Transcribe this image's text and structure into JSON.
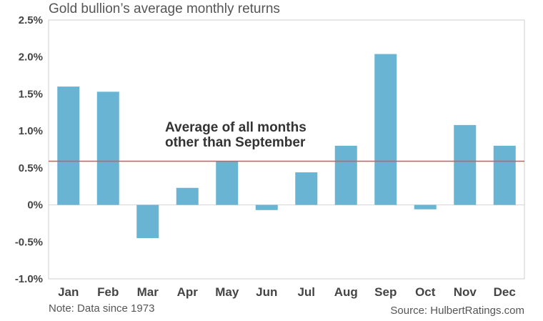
{
  "chart_data": {
    "type": "bar",
    "title": "Gold bullion’s average monthly returns",
    "categories": [
      "Jan",
      "Feb",
      "Mar",
      "Apr",
      "May",
      "Jun",
      "Jul",
      "Aug",
      "Sep",
      "Oct",
      "Nov",
      "Dec"
    ],
    "values": [
      1.6,
      1.53,
      -0.45,
      0.23,
      0.59,
      -0.07,
      0.44,
      0.8,
      2.04,
      -0.06,
      1.08,
      0.8
    ],
    "ylim": [
      -1.0,
      2.5
    ],
    "yticks": [
      2.5,
      2.0,
      1.5,
      1.0,
      0.5,
      0,
      -0.5,
      -1.0
    ],
    "ytick_labels": [
      "2.5%",
      "2.0%",
      "1.5%",
      "1.0%",
      "0.5%",
      "0%",
      "-0.5%",
      "-1.0%"
    ],
    "reference_line": {
      "value": 0.59,
      "label_lines": [
        "Average of all months",
        "other than September"
      ],
      "color": "#e8504f"
    },
    "bar_color": "#6ab4d3",
    "grid": false,
    "note": "Note: Data since 1973",
    "source": "Source: HulbertRatings.com"
  }
}
